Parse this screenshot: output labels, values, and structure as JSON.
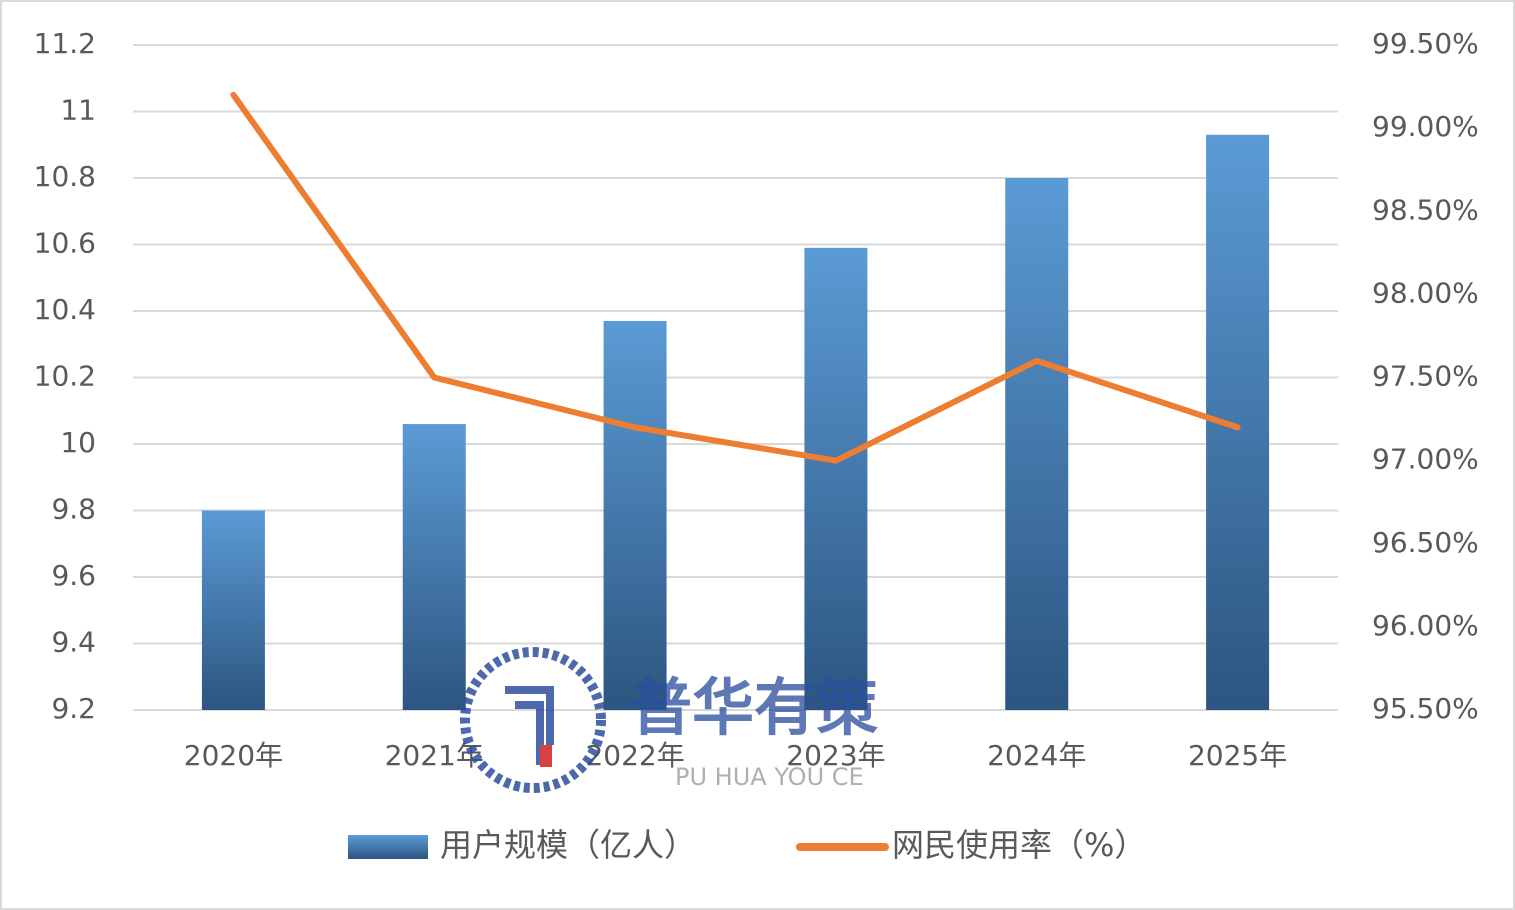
{
  "chart_data": {
    "type": "bar-line",
    "categories": [
      "2020年",
      "2021年",
      "2022年",
      "2023年",
      "2024年",
      "2025年"
    ],
    "series": [
      {
        "name": "用户规模（亿人）",
        "type": "bar",
        "color": "#5b9bd5",
        "values": [
          9.8,
          10.06,
          10.37,
          10.59,
          10.8,
          10.93
        ]
      },
      {
        "name": "网民使用率（%）",
        "type": "line",
        "axis": "y2",
        "color": "#ed7d31",
        "values": [
          99.2,
          97.5,
          97.2,
          97.0,
          97.6,
          97.2
        ]
      }
    ],
    "ylim": [
      9.2,
      11.2
    ],
    "yticks": [
      9.2,
      9.4,
      9.6,
      9.8,
      10,
      10.2,
      10.4,
      10.6,
      10.8,
      11,
      11.2
    ],
    "y2lim": [
      95.5,
      99.5
    ],
    "y2ticks": [
      {
        "value": 95.5,
        "label": "95.50%"
      },
      {
        "value": 96,
        "label": "96.00%"
      },
      {
        "value": 96.5,
        "label": "96.50%"
      },
      {
        "value": 97,
        "label": "97.00%"
      },
      {
        "value": 97.5,
        "label": "97.50%"
      },
      {
        "value": 98,
        "label": "98.00%"
      },
      {
        "value": 98.5,
        "label": "98.50%"
      },
      {
        "value": 99,
        "label": "99.00%"
      },
      {
        "value": 99.5,
        "label": "99.50%"
      }
    ],
    "grid": true,
    "legend": "bottom"
  },
  "watermark": {
    "title": "普华有策",
    "subtitle": "PU HUA YOU CE"
  }
}
